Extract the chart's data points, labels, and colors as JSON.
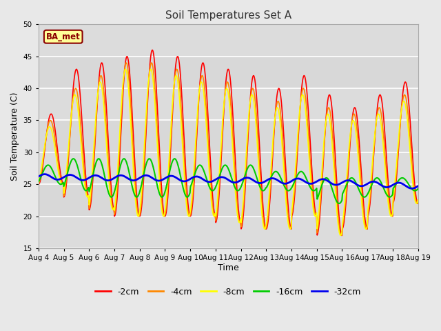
{
  "title": "Soil Temperatures Set A",
  "xlabel": "Time",
  "ylabel": "Soil Temperature (C)",
  "ylim": [
    15,
    50
  ],
  "yticks": [
    15,
    20,
    25,
    30,
    35,
    40,
    45,
    50
  ],
  "date_labels": [
    "Aug 4",
    "Aug 5",
    "Aug 6",
    "Aug 7",
    "Aug 8",
    "Aug 9",
    "Aug 10",
    "Aug 11",
    "Aug 12",
    "Aug 13",
    "Aug 14",
    "Aug 15",
    "Aug 16",
    "Aug 17",
    "Aug 18",
    "Aug 19"
  ],
  "legend_label": "BA_met",
  "series_labels": [
    "-2cm",
    "-4cm",
    "-8cm",
    "-16cm",
    "-32cm"
  ],
  "series_colors": [
    "#ff0000",
    "#ff8800",
    "#ffff00",
    "#00cc00",
    "#0000ee"
  ],
  "series_linewidths": [
    1.2,
    1.2,
    1.2,
    1.5,
    2.0
  ],
  "background_color": "#e8e8e8",
  "plot_bg_color": "#d8d8d8",
  "grid_color": "#ffffff",
  "n_days": 15,
  "points_per_day": 48,
  "day_peaks_2cm": [
    36,
    43,
    44,
    45,
    46,
    45,
    44,
    43,
    42,
    40,
    42,
    39,
    37,
    39,
    41
  ],
  "day_troughs_2cm": [
    25,
    23,
    21,
    20,
    20,
    20,
    20,
    19,
    18,
    18,
    20,
    17,
    18,
    20,
    22
  ],
  "day_peaks_4cm": [
    35,
    40,
    42,
    44,
    44,
    43,
    42,
    41,
    40,
    38,
    40,
    37,
    36,
    37,
    39
  ],
  "day_troughs_4cm": [
    25,
    23,
    21,
    20,
    20,
    20,
    20,
    19,
    18,
    18,
    20,
    17,
    18,
    20,
    22
  ],
  "day_peaks_8cm": [
    34,
    39,
    41,
    43,
    43,
    42,
    41,
    40,
    39,
    37,
    39,
    36,
    35,
    36,
    38
  ],
  "day_troughs_8cm": [
    25,
    23,
    21,
    20,
    20,
    20,
    20,
    19,
    18,
    18,
    20,
    17,
    18,
    20,
    22
  ],
  "day_peaks_16cm": [
    28,
    29,
    29,
    29,
    29,
    29,
    28,
    28,
    28,
    27,
    27,
    26,
    26,
    26,
    26
  ],
  "day_troughs_16cm": [
    25,
    24,
    23,
    23,
    23,
    23,
    24,
    24,
    24,
    24,
    24,
    22,
    23,
    23,
    24
  ],
  "base_32cm": [
    26.2,
    26.1,
    26.0,
    26.0,
    26.0,
    25.9,
    25.8,
    25.7,
    25.6,
    25.5,
    25.5,
    25.3,
    25.1,
    24.9,
    24.7
  ],
  "amp_32cm": 0.4,
  "phase_shift_4cm": 0.03,
  "phase_shift_8cm": 0.06,
  "phase_shift_16cm": 0.12,
  "phase_shift_32cm": 0.25
}
